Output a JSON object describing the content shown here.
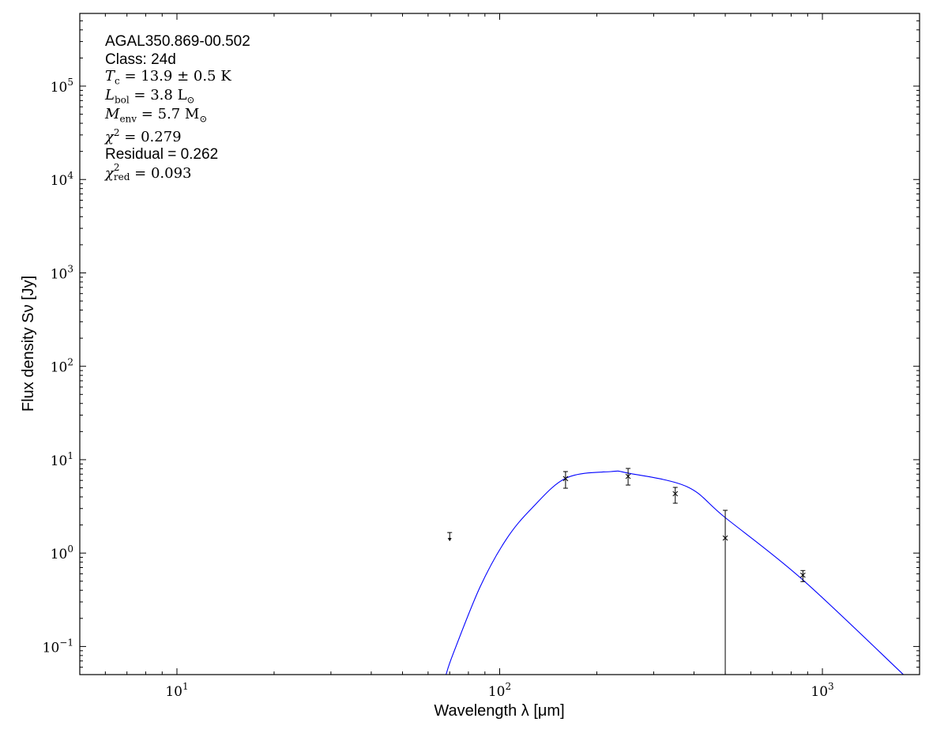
{
  "chart_data": {
    "type": "scatter",
    "xlabel": "Wavelength λ [μm]",
    "ylabel": "Flux density Sν [Jy]",
    "xscale": "log",
    "yscale": "log",
    "xlim": [
      5,
      2000
    ],
    "ylim": [
      0.05,
      600000
    ],
    "grid": false,
    "x_ticks": [
      {
        "value": 10,
        "base": "10",
        "exp": "1"
      },
      {
        "value": 100,
        "base": "10",
        "exp": "2"
      },
      {
        "value": 1000,
        "base": "10",
        "exp": "3"
      }
    ],
    "y_ticks": [
      {
        "value": 0.1,
        "base": "10",
        "exp": "−1"
      },
      {
        "value": 1,
        "base": "10",
        "exp": "0"
      },
      {
        "value": 10,
        "base": "10",
        "exp": "1"
      },
      {
        "value": 100,
        "base": "10",
        "exp": "2"
      },
      {
        "value": 1000,
        "base": "10",
        "exp": "3"
      },
      {
        "value": 10000,
        "base": "10",
        "exp": "4"
      },
      {
        "value": 100000,
        "base": "10",
        "exp": "5"
      }
    ],
    "annotations": {
      "source": "AGAL350.869-00.502",
      "class": "Class: 24d",
      "tc": {
        "sym": "T",
        "sub": "c",
        "text": " = 13.9 ± 0.5 K"
      },
      "lbol": {
        "sym": "L",
        "sub": "bol",
        "text": " = 3.8 L",
        "unit_sub": "⊙"
      },
      "menv": {
        "sym": "M",
        "sub": "env",
        "text": " = 5.7 M",
        "unit_sub": "⊙"
      },
      "chi2": {
        "sym": "χ",
        "sup": "2",
        "text": " = 0.279"
      },
      "residual": "Residual = 0.262",
      "chi2red": {
        "sym": "χ",
        "sup": "2",
        "sub": "red",
        "text": " = 0.093"
      }
    },
    "measurements": [
      {
        "wavelength": 160,
        "flux": 6.27,
        "err_low": 4.95,
        "err_high": 7.46
      },
      {
        "wavelength": 250,
        "flux": 6.63,
        "err_low": 5.35,
        "err_high": 8.06
      },
      {
        "wavelength": 350,
        "flux": 4.32,
        "err_low": 3.42,
        "err_high": 5.05
      },
      {
        "wavelength": 500,
        "flux": 1.45,
        "err_low": 0,
        "err_high": 2.87
      },
      {
        "wavelength": 870,
        "flux": 0.58,
        "err_low": 0.495,
        "err_high": 0.65
      }
    ],
    "upper_limits": [
      {
        "wavelength": 70,
        "flux": 1.66
      }
    ],
    "model_curve": {
      "color": "#0000ff",
      "points": [
        [
          68.2,
          0.05
        ],
        [
          71.8,
          0.084
        ],
        [
          86.9,
          0.432
        ],
        [
          104.6,
          1.39
        ],
        [
          126,
          3.04
        ],
        [
          161,
          6.38
        ],
        [
          221,
          7.46
        ],
        [
          250,
          7.18
        ],
        [
          380,
          5.15
        ],
        [
          499,
          2.41
        ],
        [
          865,
          0.525
        ],
        [
          1782,
          0.05
        ]
      ]
    }
  }
}
